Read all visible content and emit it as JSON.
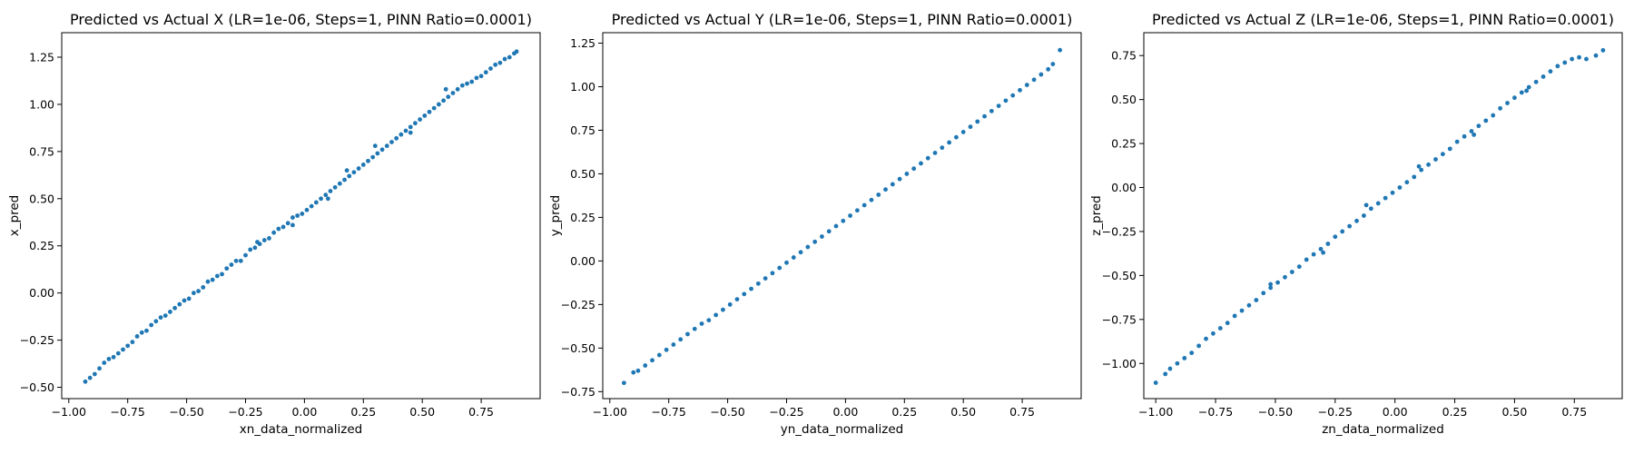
{
  "chart_data": [
    {
      "type": "scatter",
      "title": "Predicted vs Actual X (LR=1e-06, Steps=1, PINN Ratio=0.0001)",
      "xlabel": "xn_data_normalized",
      "ylabel": "x_pred",
      "xlim": [
        -1.03,
        1.0
      ],
      "ylim": [
        -0.56,
        1.38
      ],
      "xticks": [
        -1.0,
        -0.75,
        -0.5,
        -0.25,
        0.0,
        0.25,
        0.5,
        0.75
      ],
      "yticks": [
        -0.5,
        -0.25,
        0.0,
        0.25,
        0.5,
        0.75,
        1.0,
        1.25
      ],
      "tick_labels": {
        "x": [
          "−1.00",
          "−0.75",
          "−0.50",
          "−0.25",
          "0.00",
          "0.25",
          "0.50",
          "0.75"
        ],
        "y": [
          "−0.50",
          "−0.25",
          "0.00",
          "0.25",
          "0.50",
          "0.75",
          "1.00",
          "1.25"
        ]
      },
      "grid": false,
      "color": "#1f77b4",
      "points": [
        [
          -0.93,
          -0.47
        ],
        [
          -0.91,
          -0.45
        ],
        [
          -0.89,
          -0.43
        ],
        [
          -0.87,
          -0.4
        ],
        [
          -0.85,
          -0.37
        ],
        [
          -0.83,
          -0.35
        ],
        [
          -0.81,
          -0.34
        ],
        [
          -0.79,
          -0.32
        ],
        [
          -0.77,
          -0.3
        ],
        [
          -0.75,
          -0.28
        ],
        [
          -0.73,
          -0.26
        ],
        [
          -0.71,
          -0.23
        ],
        [
          -0.69,
          -0.21
        ],
        [
          -0.67,
          -0.2
        ],
        [
          -0.65,
          -0.17
        ],
        [
          -0.63,
          -0.15
        ],
        [
          -0.61,
          -0.13
        ],
        [
          -0.59,
          -0.12
        ],
        [
          -0.57,
          -0.1
        ],
        [
          -0.55,
          -0.08
        ],
        [
          -0.53,
          -0.06
        ],
        [
          -0.51,
          -0.04
        ],
        [
          -0.49,
          -0.03
        ],
        [
          -0.47,
          0.0
        ],
        [
          -0.45,
          0.01
        ],
        [
          -0.43,
          0.03
        ],
        [
          -0.41,
          0.06
        ],
        [
          -0.39,
          0.07
        ],
        [
          -0.37,
          0.09
        ],
        [
          -0.35,
          0.1
        ],
        [
          -0.33,
          0.13
        ],
        [
          -0.31,
          0.15
        ],
        [
          -0.29,
          0.17
        ],
        [
          -0.27,
          0.17
        ],
        [
          -0.25,
          0.2
        ],
        [
          -0.23,
          0.23
        ],
        [
          -0.21,
          0.24
        ],
        [
          -0.19,
          0.26
        ],
        [
          -0.17,
          0.28
        ],
        [
          -0.15,
          0.29
        ],
        [
          -0.13,
          0.32
        ],
        [
          -0.11,
          0.34
        ],
        [
          -0.09,
          0.35
        ],
        [
          -0.07,
          0.37
        ],
        [
          -0.05,
          0.4
        ],
        [
          -0.03,
          0.41
        ],
        [
          -0.01,
          0.42
        ],
        [
          0.01,
          0.44
        ],
        [
          0.03,
          0.46
        ],
        [
          0.05,
          0.48
        ],
        [
          0.07,
          0.5
        ],
        [
          0.09,
          0.52
        ],
        [
          0.11,
          0.54
        ],
        [
          0.13,
          0.56
        ],
        [
          0.15,
          0.58
        ],
        [
          0.17,
          0.6
        ],
        [
          0.19,
          0.62
        ],
        [
          0.21,
          0.64
        ],
        [
          0.23,
          0.66
        ],
        [
          0.25,
          0.68
        ],
        [
          0.27,
          0.7
        ],
        [
          0.29,
          0.72
        ],
        [
          0.31,
          0.74
        ],
        [
          0.33,
          0.76
        ],
        [
          0.35,
          0.78
        ],
        [
          0.37,
          0.8
        ],
        [
          0.39,
          0.82
        ],
        [
          0.41,
          0.84
        ],
        [
          0.43,
          0.86
        ],
        [
          0.45,
          0.88
        ],
        [
          0.47,
          0.9
        ],
        [
          0.49,
          0.92
        ],
        [
          0.51,
          0.94
        ],
        [
          0.53,
          0.96
        ],
        [
          0.55,
          0.98
        ],
        [
          0.57,
          1.0
        ],
        [
          0.59,
          1.02
        ],
        [
          0.61,
          1.04
        ],
        [
          0.63,
          1.06
        ],
        [
          0.65,
          1.08
        ],
        [
          0.67,
          1.1
        ],
        [
          0.69,
          1.11
        ],
        [
          0.71,
          1.12
        ],
        [
          0.73,
          1.14
        ],
        [
          0.75,
          1.15
        ],
        [
          0.77,
          1.17
        ],
        [
          0.79,
          1.19
        ],
        [
          0.81,
          1.21
        ],
        [
          0.83,
          1.22
        ],
        [
          0.85,
          1.24
        ],
        [
          0.87,
          1.25
        ],
        [
          0.89,
          1.27
        ],
        [
          0.9,
          1.28
        ],
        [
          -0.2,
          0.27
        ],
        [
          -0.05,
          0.36
        ],
        [
          0.1,
          0.5
        ],
        [
          0.18,
          0.65
        ],
        [
          0.3,
          0.78
        ],
        [
          0.45,
          0.85
        ],
        [
          0.6,
          1.08
        ]
      ]
    },
    {
      "type": "scatter",
      "title": "Predicted vs Actual Y (LR=1e-06, Steps=1, PINN Ratio=0.0001)",
      "xlabel": "yn_data_normalized",
      "ylabel": "y_pred",
      "xlim": [
        -1.03,
        1.0
      ],
      "ylim": [
        -0.79,
        1.31
      ],
      "xticks": [
        -1.0,
        -0.75,
        -0.5,
        -0.25,
        0.0,
        0.25,
        0.5,
        0.75
      ],
      "yticks": [
        -0.75,
        -0.5,
        -0.25,
        0.0,
        0.25,
        0.5,
        0.75,
        1.0,
        1.25
      ],
      "tick_labels": {
        "x": [
          "−1.00",
          "−0.75",
          "−0.50",
          "−0.25",
          "0.00",
          "0.25",
          "0.50",
          "0.75"
        ],
        "y": [
          "−0.75",
          "−0.50",
          "−0.25",
          "0.00",
          "0.25",
          "0.50",
          "0.75",
          "1.00",
          "1.25"
        ]
      },
      "grid": false,
      "color": "#1f77b4",
      "points": [
        [
          -0.94,
          -0.7
        ],
        [
          -0.9,
          -0.64
        ],
        [
          -0.88,
          -0.63
        ],
        [
          -0.85,
          -0.6
        ],
        [
          -0.82,
          -0.57
        ],
        [
          -0.79,
          -0.54
        ],
        [
          -0.76,
          -0.51
        ],
        [
          -0.73,
          -0.48
        ],
        [
          -0.7,
          -0.45
        ],
        [
          -0.67,
          -0.42
        ],
        [
          -0.64,
          -0.39
        ],
        [
          -0.61,
          -0.36
        ],
        [
          -0.58,
          -0.34
        ],
        [
          -0.55,
          -0.31
        ],
        [
          -0.52,
          -0.28
        ],
        [
          -0.49,
          -0.25
        ],
        [
          -0.46,
          -0.22
        ],
        [
          -0.43,
          -0.19
        ],
        [
          -0.4,
          -0.16
        ],
        [
          -0.37,
          -0.13
        ],
        [
          -0.34,
          -0.1
        ],
        [
          -0.31,
          -0.07
        ],
        [
          -0.28,
          -0.04
        ],
        [
          -0.25,
          -0.01
        ],
        [
          -0.22,
          0.02
        ],
        [
          -0.19,
          0.05
        ],
        [
          -0.16,
          0.08
        ],
        [
          -0.13,
          0.11
        ],
        [
          -0.1,
          0.14
        ],
        [
          -0.07,
          0.17
        ],
        [
          -0.04,
          0.2
        ],
        [
          -0.01,
          0.23
        ],
        [
          0.02,
          0.26
        ],
        [
          0.05,
          0.29
        ],
        [
          0.08,
          0.32
        ],
        [
          0.11,
          0.35
        ],
        [
          0.14,
          0.38
        ],
        [
          0.17,
          0.41
        ],
        [
          0.2,
          0.44
        ],
        [
          0.23,
          0.47
        ],
        [
          0.26,
          0.5
        ],
        [
          0.29,
          0.53
        ],
        [
          0.32,
          0.56
        ],
        [
          0.35,
          0.59
        ],
        [
          0.38,
          0.62
        ],
        [
          0.41,
          0.65
        ],
        [
          0.44,
          0.68
        ],
        [
          0.47,
          0.71
        ],
        [
          0.5,
          0.74
        ],
        [
          0.53,
          0.77
        ],
        [
          0.56,
          0.8
        ],
        [
          0.59,
          0.83
        ],
        [
          0.62,
          0.86
        ],
        [
          0.65,
          0.89
        ],
        [
          0.68,
          0.92
        ],
        [
          0.71,
          0.95
        ],
        [
          0.74,
          0.98
        ],
        [
          0.77,
          1.01
        ],
        [
          0.8,
          1.04
        ],
        [
          0.83,
          1.07
        ],
        [
          0.86,
          1.1
        ],
        [
          0.88,
          1.13
        ],
        [
          0.91,
          1.21
        ]
      ]
    },
    {
      "type": "scatter",
      "title": "Predicted vs Actual Z (LR=1e-06, Steps=1, PINN Ratio=0.0001)",
      "xlabel": "zn_data_normalized",
      "ylabel": "z_pred",
      "xlim": [
        -1.05,
        0.95
      ],
      "ylim": [
        -1.2,
        0.88
      ],
      "xticks": [
        -1.0,
        -0.75,
        -0.5,
        -0.25,
        0.0,
        0.25,
        0.5,
        0.75
      ],
      "yticks": [
        -1.0,
        -0.75,
        -0.5,
        -0.25,
        0.0,
        0.25,
        0.5,
        0.75
      ],
      "tick_labels": {
        "x": [
          "−1.00",
          "−0.75",
          "−0.50",
          "−0.25",
          "0.00",
          "0.25",
          "0.50",
          "0.75"
        ],
        "y": [
          "−1.00",
          "−0.75",
          "−0.50",
          "−0.25",
          "0.00",
          "0.25",
          "0.50",
          "0.75"
        ]
      },
      "grid": false,
      "color": "#1f77b4",
      "points": [
        [
          -1.0,
          -1.11
        ],
        [
          -0.96,
          -1.06
        ],
        [
          -0.94,
          -1.03
        ],
        [
          -0.91,
          -1.0
        ],
        [
          -0.88,
          -0.97
        ],
        [
          -0.85,
          -0.94
        ],
        [
          -0.82,
          -0.9
        ],
        [
          -0.79,
          -0.86
        ],
        [
          -0.76,
          -0.83
        ],
        [
          -0.73,
          -0.8
        ],
        [
          -0.7,
          -0.77
        ],
        [
          -0.67,
          -0.73
        ],
        [
          -0.64,
          -0.7
        ],
        [
          -0.61,
          -0.67
        ],
        [
          -0.58,
          -0.64
        ],
        [
          -0.55,
          -0.6
        ],
        [
          -0.52,
          -0.57
        ],
        [
          -0.49,
          -0.54
        ],
        [
          -0.46,
          -0.51
        ],
        [
          -0.43,
          -0.48
        ],
        [
          -0.4,
          -0.45
        ],
        [
          -0.37,
          -0.41
        ],
        [
          -0.34,
          -0.38
        ],
        [
          -0.31,
          -0.35
        ],
        [
          -0.28,
          -0.32
        ],
        [
          -0.25,
          -0.28
        ],
        [
          -0.22,
          -0.25
        ],
        [
          -0.19,
          -0.22
        ],
        [
          -0.16,
          -0.19
        ],
        [
          -0.13,
          -0.16
        ],
        [
          -0.1,
          -0.12
        ],
        [
          -0.07,
          -0.09
        ],
        [
          -0.04,
          -0.06
        ],
        [
          -0.01,
          -0.03
        ],
        [
          0.02,
          0.0
        ],
        [
          0.05,
          0.03
        ],
        [
          0.08,
          0.06
        ],
        [
          0.11,
          0.1
        ],
        [
          0.14,
          0.13
        ],
        [
          0.17,
          0.16
        ],
        [
          0.2,
          0.19
        ],
        [
          0.23,
          0.22
        ],
        [
          0.26,
          0.26
        ],
        [
          0.29,
          0.29
        ],
        [
          0.32,
          0.32
        ],
        [
          0.35,
          0.35
        ],
        [
          0.38,
          0.38
        ],
        [
          0.41,
          0.41
        ],
        [
          0.44,
          0.45
        ],
        [
          0.47,
          0.48
        ],
        [
          0.5,
          0.51
        ],
        [
          0.53,
          0.54
        ],
        [
          0.56,
          0.57
        ],
        [
          0.59,
          0.6
        ],
        [
          0.62,
          0.63
        ],
        [
          0.65,
          0.66
        ],
        [
          0.68,
          0.69
        ],
        [
          0.71,
          0.71
        ],
        [
          0.74,
          0.73
        ],
        [
          0.77,
          0.74
        ],
        [
          0.8,
          0.73
        ],
        [
          0.84,
          0.75
        ],
        [
          0.87,
          0.78
        ],
        [
          -0.52,
          -0.55
        ],
        [
          -0.3,
          -0.37
        ],
        [
          -0.12,
          -0.1
        ],
        [
          0.1,
          0.12
        ],
        [
          0.33,
          0.3
        ],
        [
          0.55,
          0.55
        ]
      ]
    }
  ]
}
